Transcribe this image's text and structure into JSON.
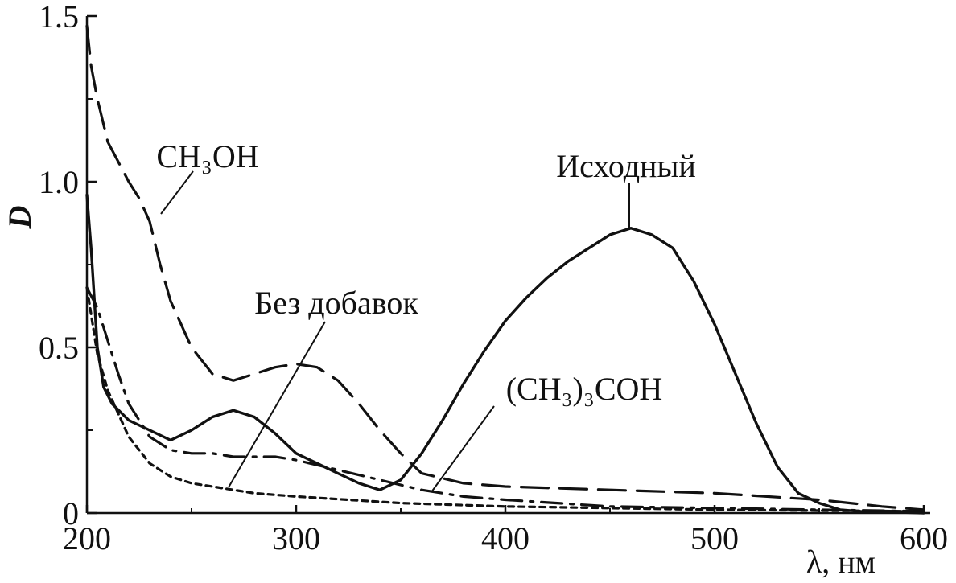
{
  "chart_data": {
    "type": "line",
    "xlabel": "λ, нм",
    "ylabel": "D",
    "xlim": [
      200,
      600
    ],
    "ylim": [
      0,
      1.5
    ],
    "x_ticks": [
      200,
      300,
      400,
      500,
      600
    ],
    "x_tick_labels": [
      "200",
      "300",
      "400",
      "500",
      "600"
    ],
    "y_ticks": [
      0,
      0.5,
      1.0,
      1.5
    ],
    "y_tick_labels": [
      "0",
      "0.5",
      "1.0",
      "1.5"
    ],
    "grid": false,
    "legend": "none",
    "series": [
      {
        "name": "Исходный",
        "style": "solid",
        "x": [
          200,
          202,
          205,
          208,
          212,
          220,
          230,
          240,
          250,
          260,
          270,
          280,
          290,
          300,
          310,
          320,
          330,
          340,
          350,
          360,
          370,
          380,
          390,
          400,
          410,
          420,
          430,
          440,
          450,
          460,
          470,
          480,
          490,
          500,
          510,
          520,
          530,
          540,
          550,
          560,
          570,
          580,
          590,
          600
        ],
        "y": [
          0.96,
          0.8,
          0.5,
          0.38,
          0.33,
          0.28,
          0.25,
          0.22,
          0.25,
          0.29,
          0.31,
          0.29,
          0.24,
          0.18,
          0.15,
          0.12,
          0.09,
          0.07,
          0.1,
          0.18,
          0.28,
          0.39,
          0.49,
          0.58,
          0.65,
          0.71,
          0.76,
          0.8,
          0.84,
          0.86,
          0.84,
          0.8,
          0.7,
          0.57,
          0.42,
          0.27,
          0.14,
          0.06,
          0.03,
          0.01,
          0.005,
          0.003,
          0.002,
          0.0
        ]
      },
      {
        "name": "CH3OH",
        "style": "dashed",
        "x": [
          200,
          202,
          205,
          210,
          215,
          220,
          225,
          230,
          235,
          240,
          250,
          260,
          270,
          280,
          290,
          300,
          310,
          320,
          330,
          340,
          350,
          360,
          380,
          400,
          450,
          500,
          550,
          580,
          600
        ],
        "y": [
          1.47,
          1.35,
          1.25,
          1.12,
          1.06,
          1.0,
          0.95,
          0.88,
          0.75,
          0.64,
          0.5,
          0.42,
          0.4,
          0.42,
          0.44,
          0.45,
          0.44,
          0.4,
          0.33,
          0.25,
          0.18,
          0.12,
          0.09,
          0.08,
          0.07,
          0.06,
          0.04,
          0.02,
          0.01
        ]
      },
      {
        "name": "(CH3)3COH",
        "style": "dashdot",
        "x": [
          200,
          205,
          210,
          215,
          220,
          230,
          240,
          250,
          260,
          270,
          280,
          290,
          300,
          320,
          340,
          360,
          380,
          400,
          450,
          500,
          550,
          600
        ],
        "y": [
          0.68,
          0.62,
          0.52,
          0.42,
          0.33,
          0.23,
          0.19,
          0.18,
          0.18,
          0.17,
          0.17,
          0.17,
          0.16,
          0.13,
          0.1,
          0.07,
          0.05,
          0.04,
          0.02,
          0.015,
          0.01,
          0.005
        ]
      },
      {
        "name": "Без добавок",
        "style": "dotted",
        "x": [
          200,
          202,
          205,
          210,
          215,
          220,
          230,
          240,
          250,
          260,
          270,
          280,
          300,
          350,
          400,
          450,
          500,
          600
        ],
        "y": [
          0.68,
          0.6,
          0.48,
          0.37,
          0.3,
          0.23,
          0.15,
          0.11,
          0.09,
          0.08,
          0.07,
          0.06,
          0.05,
          0.03,
          0.02,
          0.015,
          0.01,
          0.005
        ]
      }
    ],
    "annotations": [
      {
        "text": "CH₃OH",
        "series": "CH3OH"
      },
      {
        "text": "Исходный",
        "series": "Исходный"
      },
      {
        "text": "Без добавок",
        "series": "Без добавок"
      },
      {
        "text": "(CH₃)₃COH",
        "series": "(CH3)3COH"
      }
    ]
  }
}
